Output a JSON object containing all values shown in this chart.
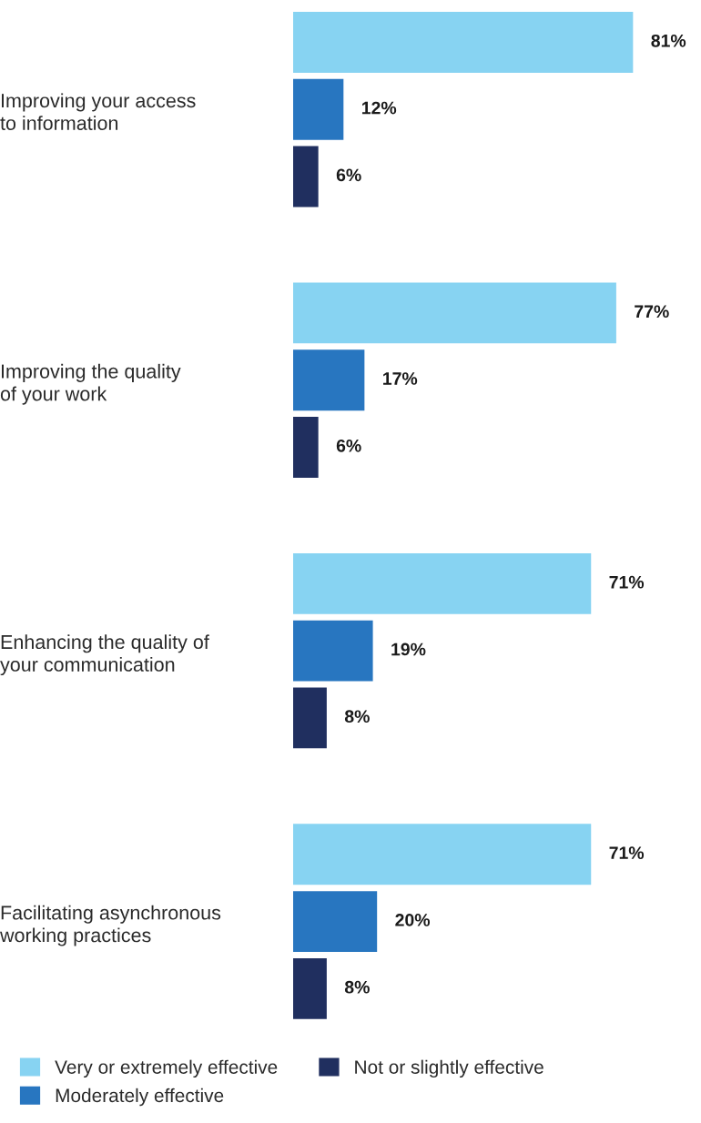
{
  "chart_data": {
    "type": "bar",
    "orientation": "horizontal",
    "categories": [
      "Improving your access\nto information",
      "Improving the quality\nof your work",
      "Enhancing the quality of\nyour communication",
      "Facilitating asynchronous\nworking practices"
    ],
    "series": [
      {
        "name": "Very or extremely effective",
        "color": "#87d3f2",
        "values": [
          81,
          77,
          71,
          71
        ],
        "value_labels": [
          "81%",
          "77%",
          "71%",
          "71%"
        ]
      },
      {
        "name": "Moderately effective",
        "color": "#2876c0",
        "values": [
          12,
          17,
          19,
          20
        ],
        "value_labels": [
          "12%",
          "17%",
          "19%",
          "20%"
        ]
      },
      {
        "name": "Not or slightly effective",
        "color": "#202f5f",
        "values": [
          6,
          6,
          8,
          8
        ],
        "value_labels": [
          "6%",
          "6%",
          "8%",
          "8%"
        ]
      }
    ],
    "legend": "bottom",
    "grid": false,
    "tick_labels": "y"
  }
}
